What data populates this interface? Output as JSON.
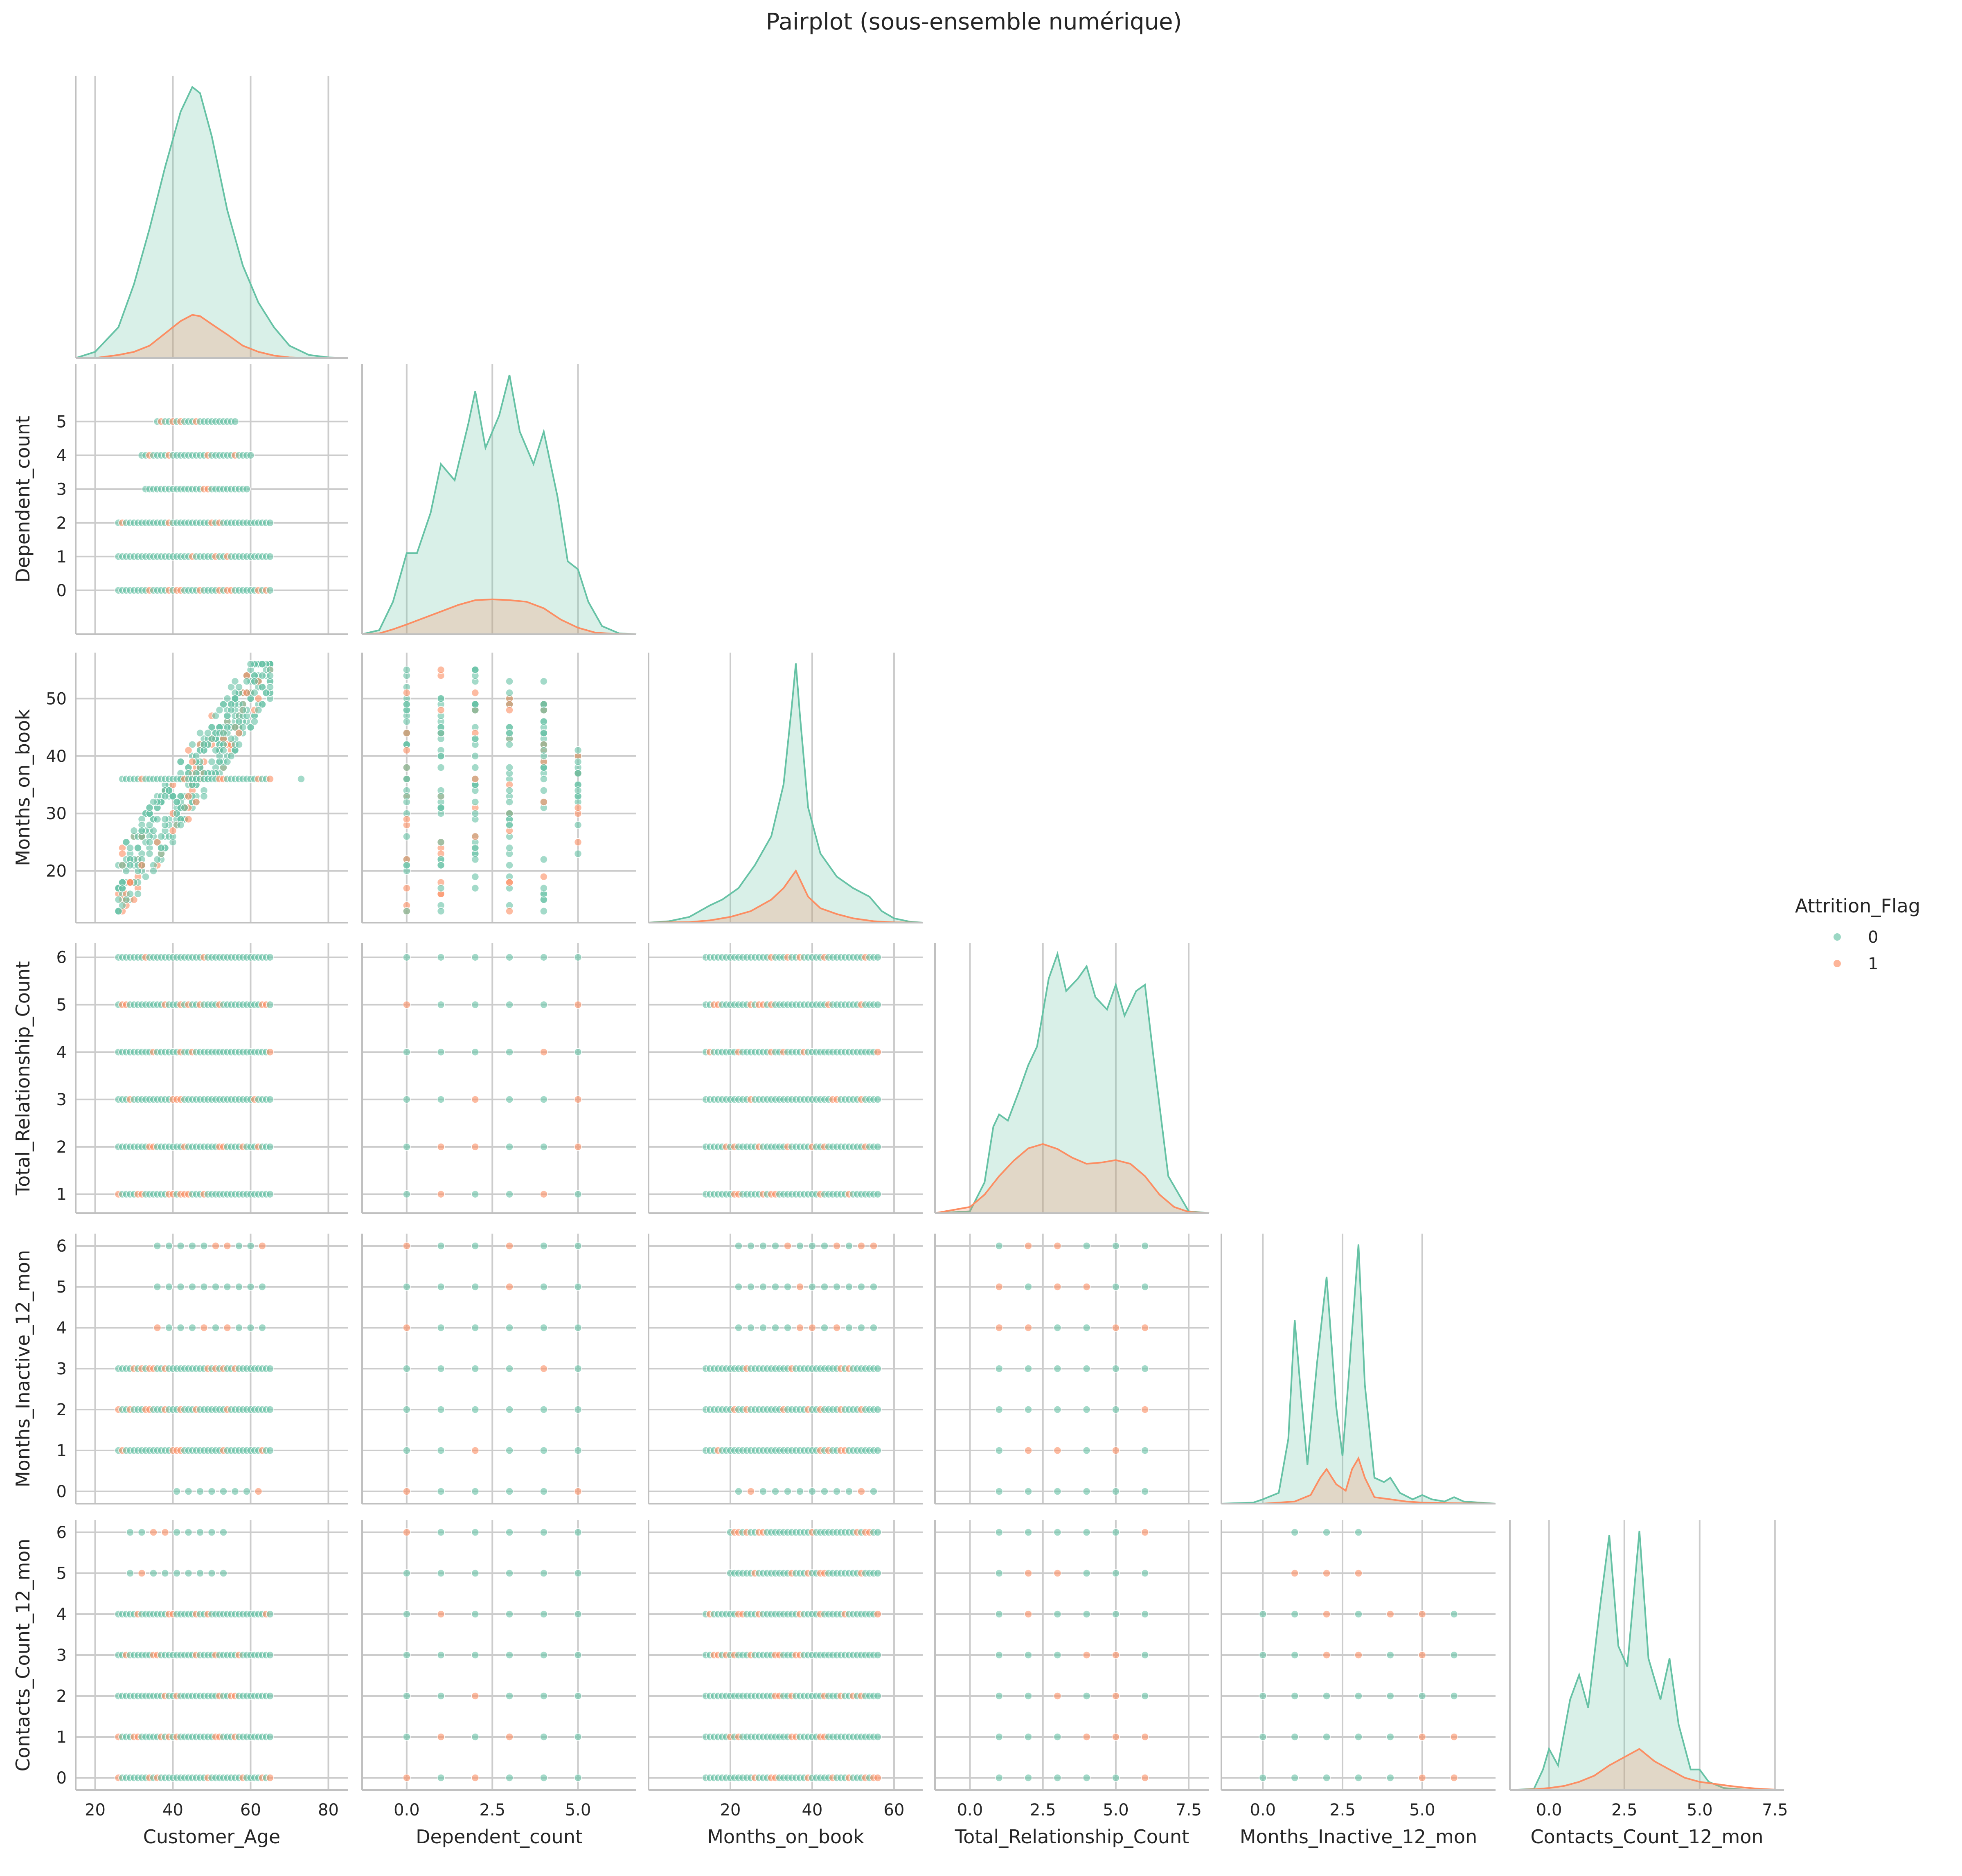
{
  "chart_data": {
    "type": "scatter",
    "subtype": "pairplot-corner",
    "title": "Pairplot (sous-ensemble numérique)",
    "hue": "Attrition_Flag",
    "legend": {
      "title": "Attrition_Flag",
      "position": "right",
      "entries": [
        {
          "label": "0",
          "color": "#66c2a5"
        },
        {
          "label": "1",
          "color": "#fc8d62"
        }
      ]
    },
    "diagonal": "kde",
    "grid": true,
    "variables": [
      {
        "name": "Customer_Age",
        "range": [
          15,
          85
        ],
        "ticks": [
          "20",
          "40",
          "60",
          "80"
        ],
        "tick_values": [
          20,
          40,
          60,
          80
        ]
      },
      {
        "name": "Dependent_count",
        "range": [
          -1.3,
          6.7
        ],
        "ticks": [
          "0.0",
          "2.5",
          "5.0"
        ],
        "tick_values": [
          0,
          2.5,
          5
        ],
        "y_ticks": [
          "0",
          "1",
          "2",
          "3",
          "4",
          "5"
        ],
        "y_tick_values": [
          0,
          1,
          2,
          3,
          4,
          5
        ]
      },
      {
        "name": "Months_on_book",
        "range": [
          0,
          67
        ],
        "ticks": [
          "20",
          "40",
          "60"
        ],
        "tick_values": [
          20,
          40,
          60
        ],
        "y_range": [
          11,
          58
        ],
        "y_ticks": [
          "20",
          "30",
          "40",
          "50"
        ],
        "y_tick_values": [
          20,
          30,
          40,
          50
        ]
      },
      {
        "name": "Total_Relationship_Count",
        "range": [
          -1.2,
          8.2
        ],
        "ticks": [
          "0.0",
          "2.5",
          "5.0",
          "7.5"
        ],
        "tick_values": [
          0,
          2.5,
          5,
          7.5
        ],
        "y_range": [
          0.6,
          6.3
        ],
        "y_ticks": [
          "1",
          "2",
          "3",
          "4",
          "5",
          "6"
        ],
        "y_tick_values": [
          1,
          2,
          3,
          4,
          5,
          6
        ]
      },
      {
        "name": "Months_Inactive_12_mon",
        "range": [
          -1.3,
          7.3
        ],
        "ticks": [
          "0.0",
          "2.5",
          "5.0"
        ],
        "tick_values": [
          0,
          2.5,
          5
        ],
        "y_range": [
          -0.3,
          6.3
        ],
        "y_ticks": [
          "0",
          "1",
          "2",
          "3",
          "4",
          "5",
          "6"
        ],
        "y_tick_values": [
          0,
          1,
          2,
          3,
          4,
          5,
          6
        ]
      },
      {
        "name": "Contacts_Count_12_mon",
        "range": [
          -1.3,
          7.8
        ],
        "ticks": [
          "0.0",
          "2.5",
          "5.0",
          "7.5"
        ],
        "tick_values": [
          0,
          2.5,
          5,
          7.5
        ],
        "y_range": [
          -0.3,
          6.3
        ],
        "y_ticks": [
          "0",
          "1",
          "2",
          "3",
          "4",
          "5",
          "6"
        ],
        "y_tick_values": [
          0,
          1,
          2,
          3,
          4,
          5,
          6
        ]
      }
    ],
    "kde": {
      "Customer_Age": [
        {
          "name": "0",
          "x": [
            15,
            20,
            26,
            30,
            34,
            38,
            42,
            45,
            47,
            50,
            54,
            58,
            62,
            66,
            70,
            75,
            80,
            85
          ],
          "y": [
            0,
            0.001,
            0.005,
            0.012,
            0.021,
            0.031,
            0.04,
            0.044,
            0.043,
            0.036,
            0.024,
            0.015,
            0.009,
            0.005,
            0.002,
            0.0005,
            0.0001,
            0
          ]
        },
        {
          "name": "1",
          "x": [
            15,
            20,
            26,
            30,
            34,
            38,
            42,
            45,
            47,
            50,
            54,
            58,
            62,
            66,
            70,
            75,
            80,
            85
          ],
          "y": [
            0,
            0,
            0.0005,
            0.001,
            0.002,
            0.004,
            0.006,
            0.007,
            0.0068,
            0.0055,
            0.0038,
            0.002,
            0.001,
            0.0004,
            0.0001,
            0,
            0,
            0
          ]
        }
      ],
      "Dependent_count": [
        {
          "name": "0",
          "x": [
            -1.3,
            -0.8,
            -0.4,
            0,
            0.3,
            0.7,
            1,
            1.4,
            1.8,
            2,
            2.3,
            2.7,
            3,
            3.3,
            3.7,
            4,
            4.4,
            4.7,
            5,
            5.3,
            5.7,
            6.2,
            6.7
          ],
          "y": [
            0,
            0.005,
            0.04,
            0.1,
            0.1,
            0.15,
            0.21,
            0.19,
            0.26,
            0.3,
            0.23,
            0.27,
            0.32,
            0.25,
            0.21,
            0.25,
            0.17,
            0.09,
            0.08,
            0.04,
            0.01,
            0.001,
            0
          ]
        },
        {
          "name": "1",
          "x": [
            -1.3,
            -0.8,
            -0.4,
            0,
            0.5,
            1,
            1.5,
            2,
            2.5,
            3,
            3.5,
            4,
            4.5,
            5,
            5.5,
            6,
            6.7
          ],
          "y": [
            0,
            0.001,
            0.006,
            0.012,
            0.02,
            0.028,
            0.036,
            0.042,
            0.043,
            0.042,
            0.04,
            0.032,
            0.018,
            0.008,
            0.002,
            0.0005,
            0
          ]
        }
      ],
      "Months_on_book": [
        {
          "name": "0",
          "x": [
            0,
            5,
            10,
            15,
            18,
            22,
            26,
            30,
            33,
            35,
            36,
            37,
            39,
            42,
            46,
            50,
            54,
            57,
            60,
            64,
            67
          ],
          "y": [
            0,
            0.0005,
            0.002,
            0.006,
            0.008,
            0.012,
            0.02,
            0.03,
            0.048,
            0.075,
            0.09,
            0.072,
            0.04,
            0.024,
            0.016,
            0.012,
            0.009,
            0.004,
            0.0015,
            0.0003,
            0
          ]
        },
        {
          "name": "1",
          "x": [
            0,
            10,
            15,
            20,
            25,
            30,
            33,
            35,
            36,
            37,
            39,
            42,
            46,
            50,
            55,
            60,
            67
          ],
          "y": [
            0,
            0.0002,
            0.0008,
            0.002,
            0.004,
            0.008,
            0.012,
            0.016,
            0.018,
            0.015,
            0.009,
            0.005,
            0.003,
            0.0015,
            0.0005,
            0.0001,
            0
          ]
        }
      ],
      "Total_Relationship_Count": [
        {
          "name": "0",
          "x": [
            -1.2,
            0,
            0.5,
            0.8,
            1,
            1.3,
            1.7,
            2,
            2.3,
            2.7,
            3,
            3.3,
            3.7,
            4,
            4.3,
            4.7,
            5,
            5.3,
            5.7,
            6,
            6.3,
            6.8,
            7.5,
            8.2
          ],
          "y": [
            0,
            0.003,
            0.05,
            0.14,
            0.16,
            0.15,
            0.2,
            0.24,
            0.27,
            0.38,
            0.42,
            0.36,
            0.38,
            0.4,
            0.35,
            0.33,
            0.37,
            0.32,
            0.36,
            0.37,
            0.25,
            0.06,
            0.003,
            0
          ]
        },
        {
          "name": "1",
          "x": [
            -1.2,
            0,
            0.5,
            1,
            1.5,
            2,
            2.5,
            3,
            3.5,
            4,
            4.5,
            5,
            5.5,
            6,
            6.5,
            7,
            7.5,
            8.2
          ],
          "y": [
            0,
            0.01,
            0.03,
            0.06,
            0.085,
            0.105,
            0.112,
            0.104,
            0.09,
            0.08,
            0.082,
            0.086,
            0.08,
            0.06,
            0.03,
            0.01,
            0.002,
            0
          ]
        }
      ],
      "Months_Inactive_12_mon": [
        {
          "name": "0",
          "x": [
            -1.3,
            -0.3,
            0,
            0.5,
            0.8,
            1,
            1.2,
            1.4,
            1.7,
            2,
            2.3,
            2.5,
            2.7,
            3,
            3.2,
            3.5,
            3.8,
            4,
            4.3,
            4.7,
            5,
            5.3,
            5.7,
            6,
            6.3,
            7.3
          ],
          "y": [
            0,
            0.005,
            0.02,
            0.05,
            0.3,
            0.85,
            0.5,
            0.18,
            0.65,
            1.05,
            0.45,
            0.22,
            0.6,
            1.2,
            0.55,
            0.12,
            0.1,
            0.12,
            0.05,
            0.02,
            0.04,
            0.02,
            0.01,
            0.03,
            0.01,
            0
          ]
        },
        {
          "name": "1",
          "x": [
            -1.3,
            0,
            1,
            1.5,
            1.8,
            2,
            2.3,
            2.6,
            2.8,
            3,
            3.2,
            3.5,
            4,
            4.5,
            5,
            6,
            7.3
          ],
          "y": [
            0,
            0,
            0.01,
            0.04,
            0.12,
            0.16,
            0.09,
            0.06,
            0.16,
            0.21,
            0.12,
            0.03,
            0.02,
            0.01,
            0.005,
            0.002,
            0
          ]
        }
      ],
      "Contacts_Count_12_mon": [
        {
          "name": "0",
          "x": [
            -1.3,
            -0.5,
            -0.2,
            0,
            0.3,
            0.7,
            1,
            1.3,
            1.7,
            2,
            2.3,
            2.6,
            3,
            3.3,
            3.7,
            4,
            4.3,
            4.7,
            5,
            5.3,
            5.8,
            6.5,
            7.8
          ],
          "y": [
            0,
            0.003,
            0.05,
            0.1,
            0.06,
            0.22,
            0.28,
            0.2,
            0.45,
            0.62,
            0.35,
            0.3,
            0.63,
            0.32,
            0.22,
            0.32,
            0.16,
            0.05,
            0.05,
            0.02,
            0.005,
            0.001,
            0
          ]
        },
        {
          "name": "1",
          "x": [
            -1.3,
            -0.5,
            0,
            0.5,
            1,
            1.5,
            2,
            2.5,
            3,
            3.5,
            4,
            4.5,
            5,
            5.5,
            6,
            6.5,
            7,
            7.8
          ],
          "y": [
            0,
            0.002,
            0.005,
            0.01,
            0.02,
            0.035,
            0.06,
            0.08,
            0.1,
            0.07,
            0.05,
            0.03,
            0.02,
            0.015,
            0.01,
            0.006,
            0.003,
            0
          ]
        }
      ]
    }
  }
}
